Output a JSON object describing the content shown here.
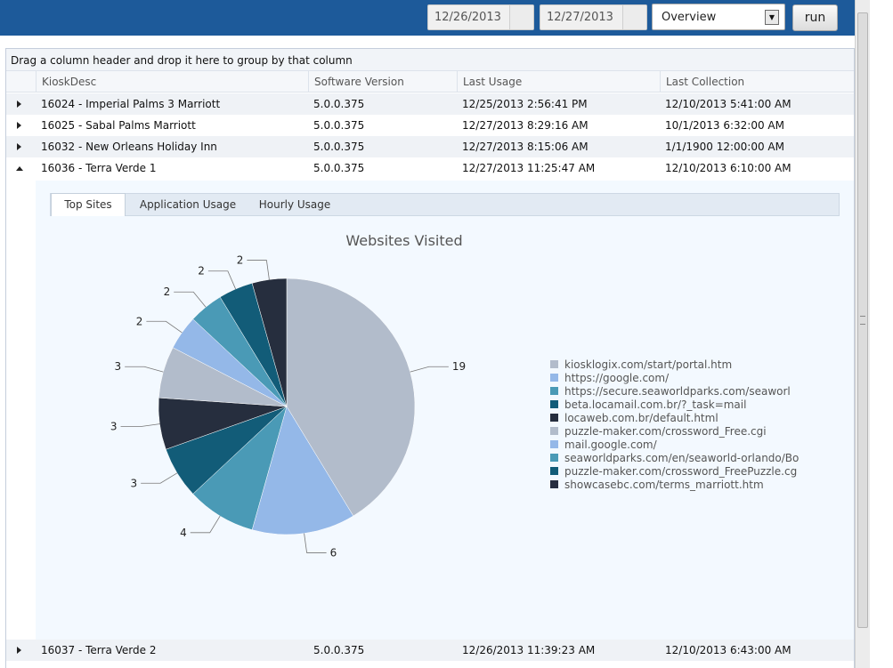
{
  "toolbar": {
    "start_date": "12/26/2013",
    "end_date": "12/27/2013",
    "report_select": "Overview",
    "run_label": "run"
  },
  "grid": {
    "group_hint": "Drag a column header and drop it here to group by that column",
    "columns": [
      "KioskDesc",
      "Software Version",
      "Last Usage",
      "Last Collection"
    ],
    "rows": [
      {
        "kiosk": "16024 - Imperial Palms 3 Marriott",
        "version": "5.0.0.375",
        "last_usage": "12/25/2013 2:56:41 PM",
        "last_collection": "12/10/2013 5:41:00 AM",
        "expanded": false
      },
      {
        "kiosk": "16025 - Sabal Palms Marriott",
        "version": "5.0.0.375",
        "last_usage": "12/27/2013 8:29:16 AM",
        "last_collection": "10/1/2013 6:32:00 AM",
        "expanded": false
      },
      {
        "kiosk": "16032 - New Orleans Holiday Inn",
        "version": "5.0.0.375",
        "last_usage": "12/27/2013 8:15:06 AM",
        "last_collection": "1/1/1900 12:00:00 AM",
        "expanded": false
      },
      {
        "kiosk": "16036 - Terra Verde 1",
        "version": "5.0.0.375",
        "last_usage": "12/27/2013 11:25:47 AM",
        "last_collection": "12/10/2013 6:10:00 AM",
        "expanded": true
      },
      {
        "kiosk": "16037 - Terra Verde 2",
        "version": "5.0.0.375",
        "last_usage": "12/26/2013 11:39:23 AM",
        "last_collection": "12/10/2013 6:43:00 AM",
        "expanded": false
      }
    ]
  },
  "detail": {
    "tabs": [
      "Top Sites",
      "Application Usage",
      "Hourly Usage"
    ],
    "active_tab": "Top Sites"
  },
  "chart_data": {
    "type": "pie",
    "title": "Websites Visited",
    "legend_position": "right",
    "categories": [
      "kiosklogix.com/start/portal.htm",
      "https://google.com/",
      "https://secure.seaworldparks.com/seaworl",
      "beta.locamail.com.br/?_task=mail",
      "locaweb.com.br/default.html",
      "puzzle-maker.com/crossword_Free.cgi",
      "mail.google.com/",
      "seaworldparks.com/en/seaworld-orlando/Bo",
      "puzzle-maker.com/crossword_FreePuzzle.cg",
      "showcasebc.com/terms_marriott.htm"
    ],
    "values": [
      19,
      6,
      4,
      3,
      3,
      3,
      2,
      2,
      2,
      2
    ],
    "colors": [
      "#b2bccb",
      "#94b8e8",
      "#4a9ab6",
      "#125c78",
      "#262e3e",
      "#b2bccb",
      "#94b8e8",
      "#4a9ab6",
      "#125c78",
      "#262e3e"
    ]
  }
}
